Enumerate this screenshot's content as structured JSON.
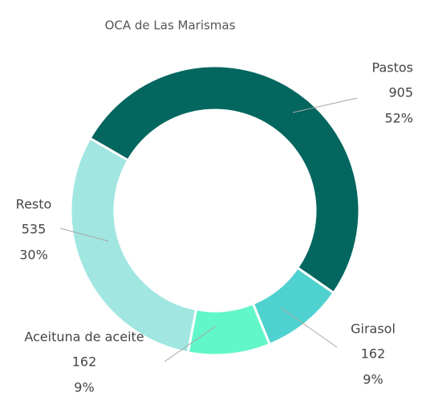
{
  "chart_data": {
    "type": "donut",
    "title": "OCA de Las Marismas",
    "categories": [
      "Pastos",
      "Girasol",
      "Aceituna de aceite",
      "Resto"
    ],
    "values": [
      905,
      162,
      162,
      535
    ],
    "percentages": [
      {
        "value": 52,
        "label": "52%"
      },
      {
        "value": 9,
        "label": "9%"
      },
      {
        "value": 9,
        "label": "9%"
      },
      {
        "value": 30,
        "label": "30%"
      }
    ],
    "colors": [
      "#03665f",
      "#4fd2cf",
      "#62f7c9",
      "#a1e6e1"
    ]
  }
}
